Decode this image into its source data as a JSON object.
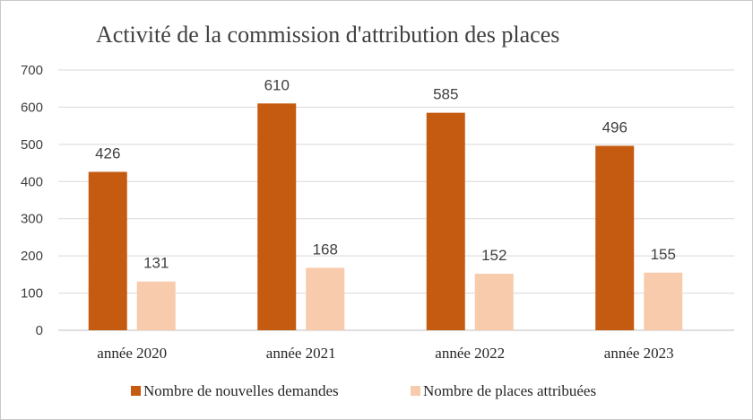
{
  "chart_data": {
    "type": "bar",
    "title": "Activité  de la commission d'attribution des places",
    "categories": [
      "année 2020",
      "année 2021",
      "année 2022",
      "année 2023"
    ],
    "series": [
      {
        "name": "Nombre de nouvelles demandes",
        "color": "#C55A11",
        "values": [
          426,
          610,
          585,
          496
        ]
      },
      {
        "name": "Nombre de places attribuées",
        "color": "#F8CBAD",
        "values": [
          131,
          168,
          152,
          155
        ]
      }
    ],
    "ylim": [
      0,
      700
    ],
    "yticks": [
      0,
      100,
      200,
      300,
      400,
      500,
      600,
      700
    ],
    "grid": true,
    "legend": "bottom",
    "xlabel": "",
    "ylabel": ""
  }
}
